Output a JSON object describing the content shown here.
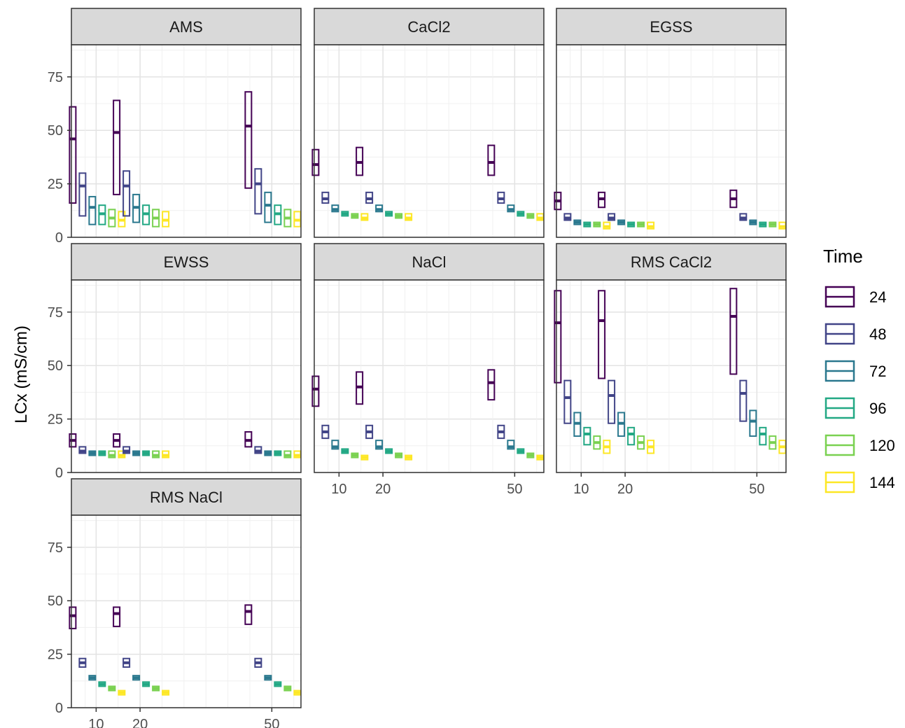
{
  "chart_data": {
    "type": "boxplot",
    "facet": "panel",
    "ylabel": "LCx (mS/cm)",
    "ylim": [
      0,
      90
    ],
    "y_ticks": [
      0,
      25,
      50,
      75
    ],
    "x_ticks": [
      10,
      20,
      50
    ],
    "x_positions": [
      10,
      20,
      50
    ],
    "legend": {
      "title": "Time",
      "placement": "right",
      "levels": [
        "24",
        "48",
        "72",
        "96",
        "120",
        "144"
      ],
      "colors": [
        "#440154",
        "#414487",
        "#2A788E",
        "#22A884",
        "#7AD151",
        "#FDE725"
      ]
    },
    "panels": [
      {
        "name": "AMS",
        "groups": [
          {
            "x": 10,
            "boxes": [
              [
                16,
                46,
                61
              ],
              [
                10,
                24,
                30
              ],
              [
                6,
                14,
                19
              ],
              [
                6,
                11,
                15
              ],
              [
                5,
                9,
                13
              ],
              [
                5,
                8,
                12
              ]
            ]
          },
          {
            "x": 20,
            "boxes": [
              [
                20,
                49,
                64
              ],
              [
                10,
                24,
                31
              ],
              [
                7,
                14,
                20
              ],
              [
                6,
                11,
                15
              ],
              [
                5,
                9,
                13
              ],
              [
                5,
                8,
                12
              ]
            ]
          },
          {
            "x": 50,
            "boxes": [
              [
                23,
                52,
                68
              ],
              [
                11,
                25,
                32
              ],
              [
                7,
                15,
                21
              ],
              [
                6,
                11,
                15
              ],
              [
                5,
                9,
                13
              ],
              [
                5,
                8,
                12
              ]
            ]
          }
        ]
      },
      {
        "name": "CaCl2",
        "groups": [
          {
            "x": 10,
            "boxes": [
              [
                29,
                34,
                41
              ],
              [
                16,
                18,
                21
              ],
              [
                12,
                13,
                15
              ],
              [
                10,
                11,
                12
              ],
              [
                9,
                10,
                11
              ],
              [
                8,
                9,
                11
              ]
            ]
          },
          {
            "x": 20,
            "boxes": [
              [
                29,
                35,
                42
              ],
              [
                16,
                18,
                21
              ],
              [
                12,
                13,
                15
              ],
              [
                10,
                11,
                12
              ],
              [
                9,
                10,
                11
              ],
              [
                8,
                9,
                11
              ]
            ]
          },
          {
            "x": 50,
            "boxes": [
              [
                29,
                35,
                43
              ],
              [
                16,
                18,
                21
              ],
              [
                12,
                13,
                15
              ],
              [
                10,
                11,
                12
              ],
              [
                9,
                10,
                11
              ],
              [
                8,
                9,
                11
              ]
            ]
          }
        ]
      },
      {
        "name": "EGSS",
        "groups": [
          {
            "x": 10,
            "boxes": [
              [
                13,
                17,
                21
              ],
              [
                8,
                9,
                11
              ],
              [
                6,
                7,
                8
              ],
              [
                5,
                6,
                7
              ],
              [
                5,
                6,
                7
              ],
              [
                4,
                5,
                7
              ]
            ]
          },
          {
            "x": 20,
            "boxes": [
              [
                14,
                18,
                21
              ],
              [
                8,
                9,
                11
              ],
              [
                6,
                7,
                8
              ],
              [
                5,
                6,
                7
              ],
              [
                5,
                6,
                7
              ],
              [
                4,
                5,
                7
              ]
            ]
          },
          {
            "x": 50,
            "boxes": [
              [
                14,
                18,
                22
              ],
              [
                8,
                9,
                11
              ],
              [
                6,
                7,
                8
              ],
              [
                5,
                6,
                7
              ],
              [
                5,
                6,
                7
              ],
              [
                4,
                5,
                7
              ]
            ]
          }
        ]
      },
      {
        "name": "EWSS",
        "groups": [
          {
            "x": 10,
            "boxes": [
              [
                12,
                15,
                18
              ],
              [
                9,
                10,
                12
              ],
              [
                8,
                9,
                10
              ],
              [
                8,
                9,
                10
              ],
              [
                7,
                8,
                10
              ],
              [
                7,
                8,
                10
              ]
            ]
          },
          {
            "x": 20,
            "boxes": [
              [
                12,
                15,
                18
              ],
              [
                9,
                10,
                12
              ],
              [
                8,
                9,
                10
              ],
              [
                8,
                9,
                10
              ],
              [
                7,
                8,
                10
              ],
              [
                7,
                8,
                10
              ]
            ]
          },
          {
            "x": 50,
            "boxes": [
              [
                12,
                15,
                19
              ],
              [
                9,
                10,
                12
              ],
              [
                8,
                9,
                10
              ],
              [
                8,
                9,
                10
              ],
              [
                7,
                8,
                10
              ],
              [
                7,
                8,
                10
              ]
            ]
          }
        ]
      },
      {
        "name": "NaCl",
        "groups": [
          {
            "x": 10,
            "boxes": [
              [
                31,
                39,
                45
              ],
              [
                16,
                19,
                22
              ],
              [
                11,
                12,
                15
              ],
              [
                9,
                10,
                11
              ],
              [
                7,
                8,
                9
              ],
              [
                6,
                7,
                8
              ]
            ]
          },
          {
            "x": 20,
            "boxes": [
              [
                32,
                40,
                47
              ],
              [
                16,
                19,
                22
              ],
              [
                11,
                12,
                15
              ],
              [
                9,
                10,
                11
              ],
              [
                7,
                8,
                9
              ],
              [
                6,
                7,
                8
              ]
            ]
          },
          {
            "x": 50,
            "boxes": [
              [
                34,
                42,
                48
              ],
              [
                16,
                19,
                22
              ],
              [
                11,
                12,
                15
              ],
              [
                9,
                10,
                11
              ],
              [
                7,
                8,
                9
              ],
              [
                6,
                7,
                8
              ]
            ]
          }
        ]
      },
      {
        "name": "RMS CaCl2",
        "groups": [
          {
            "x": 10,
            "boxes": [
              [
                42,
                70,
                85
              ],
              [
                23,
                35,
                43
              ],
              [
                17,
                23,
                28
              ],
              [
                13,
                18,
                21
              ],
              [
                11,
                14,
                17
              ],
              [
                9,
                12,
                15
              ]
            ]
          },
          {
            "x": 20,
            "boxes": [
              [
                44,
                71,
                85
              ],
              [
                23,
                36,
                43
              ],
              [
                17,
                23,
                28
              ],
              [
                13,
                18,
                21
              ],
              [
                11,
                14,
                17
              ],
              [
                9,
                12,
                15
              ]
            ]
          },
          {
            "x": 50,
            "boxes": [
              [
                46,
                73,
                86
              ],
              [
                24,
                37,
                43
              ],
              [
                17,
                24,
                29
              ],
              [
                13,
                18,
                21
              ],
              [
                11,
                14,
                17
              ],
              [
                9,
                12,
                15
              ]
            ]
          }
        ]
      },
      {
        "name": "RMS NaCl",
        "groups": [
          {
            "x": 10,
            "boxes": [
              [
                37,
                43,
                47
              ],
              [
                19,
                21,
                23
              ],
              [
                13,
                14,
                15
              ],
              [
                10,
                11,
                12
              ],
              [
                8,
                9,
                10
              ],
              [
                6,
                7,
                8
              ]
            ]
          },
          {
            "x": 20,
            "boxes": [
              [
                38,
                44,
                47
              ],
              [
                19,
                21,
                23
              ],
              [
                13,
                14,
                15
              ],
              [
                10,
                11,
                12
              ],
              [
                8,
                9,
                10
              ],
              [
                6,
                7,
                8
              ]
            ]
          },
          {
            "x": 50,
            "boxes": [
              [
                39,
                45,
                48
              ],
              [
                19,
                21,
                23
              ],
              [
                13,
                14,
                15
              ],
              [
                10,
                11,
                12
              ],
              [
                8,
                9,
                10
              ],
              [
                6,
                7,
                8
              ]
            ]
          }
        ]
      }
    ]
  }
}
